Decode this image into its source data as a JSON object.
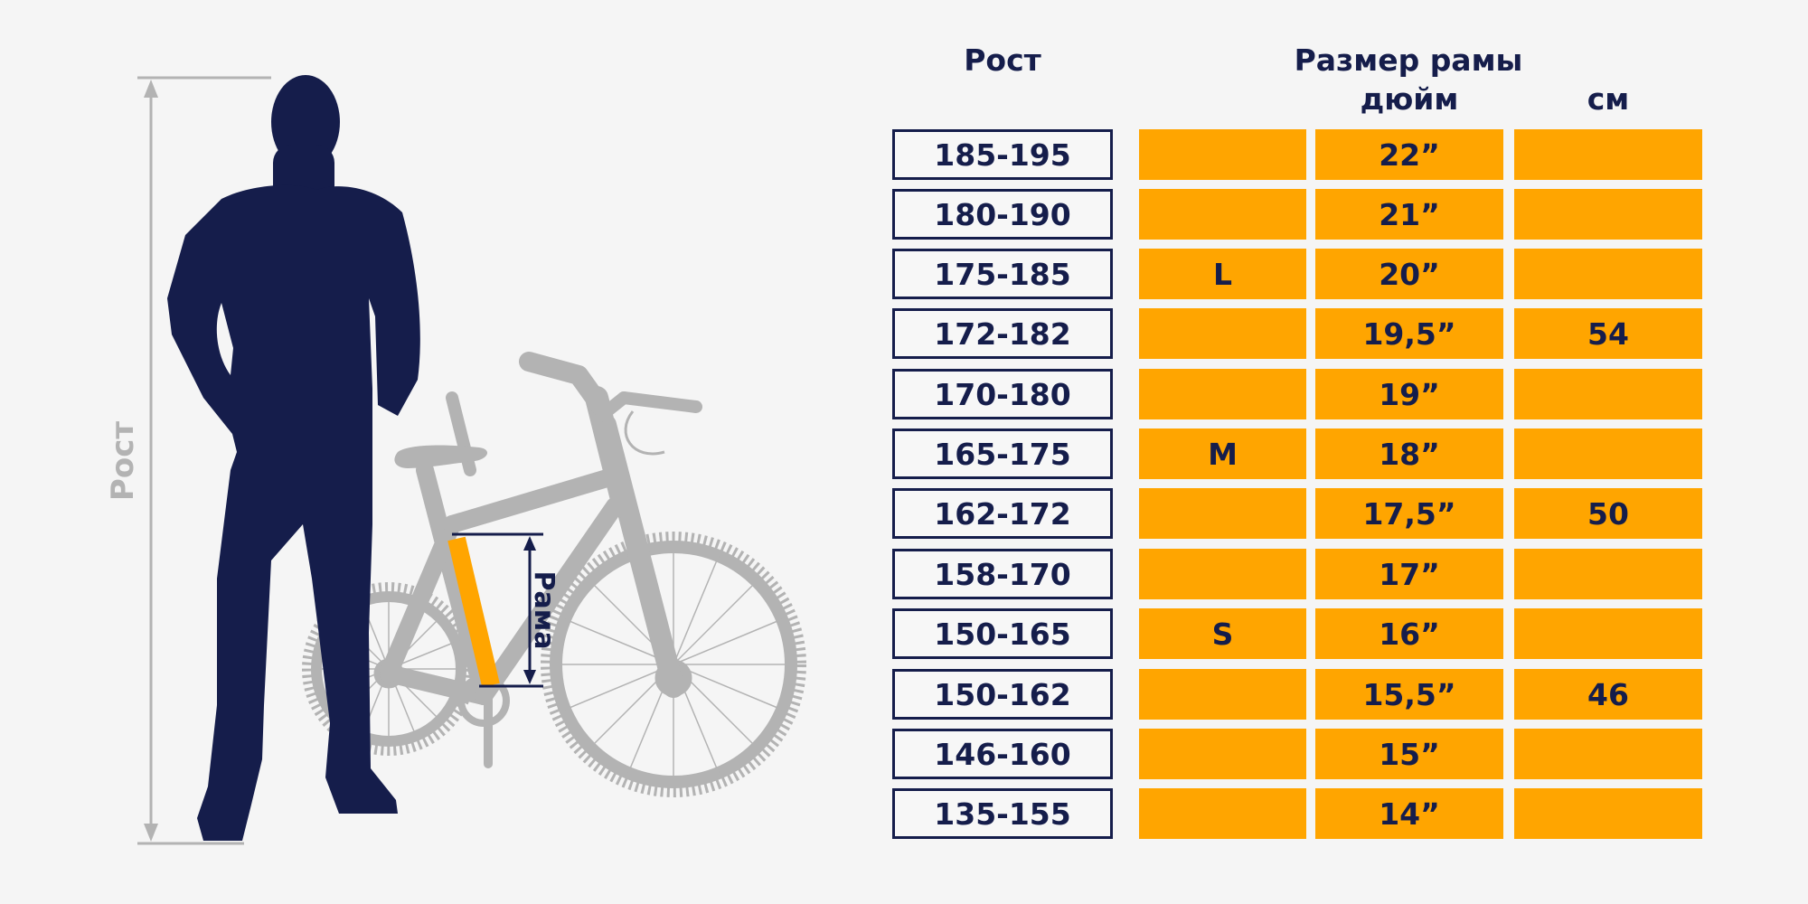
{
  "labels": {
    "height_side": "Рост",
    "frame_marker": "Рама"
  },
  "headers": {
    "height": "Рост",
    "frame_line1": "Размер рамы",
    "frame_line2": "дюйм",
    "cm": "см"
  },
  "rows": [
    {
      "height": "185-195",
      "size": "",
      "inch": "22”",
      "cm": ""
    },
    {
      "height": "180-190",
      "size": "",
      "inch": "21”",
      "cm": ""
    },
    {
      "height": "175-185",
      "size": "L",
      "inch": "20”",
      "cm": ""
    },
    {
      "height": "172-182",
      "size": "",
      "inch": "19,5”",
      "cm": "54"
    },
    {
      "height": "170-180",
      "size": "",
      "inch": "19”",
      "cm": ""
    },
    {
      "height": "165-175",
      "size": "M",
      "inch": "18”",
      "cm": ""
    },
    {
      "height": "162-172",
      "size": "",
      "inch": "17,5”",
      "cm": "50"
    },
    {
      "height": "158-170",
      "size": "",
      "inch": "17”",
      "cm": ""
    },
    {
      "height": "150-165",
      "size": "S",
      "inch": "16”",
      "cm": ""
    },
    {
      "height": "150-162",
      "size": "",
      "inch": "15,5”",
      "cm": "46"
    },
    {
      "height": "146-160",
      "size": "",
      "inch": "15”",
      "cm": ""
    },
    {
      "height": "135-155",
      "size": "",
      "inch": "14”",
      "cm": ""
    }
  ],
  "colors": {
    "navy": "#151d4b",
    "orange": "#ffa500",
    "bike_gray": "#b3b3b3"
  }
}
